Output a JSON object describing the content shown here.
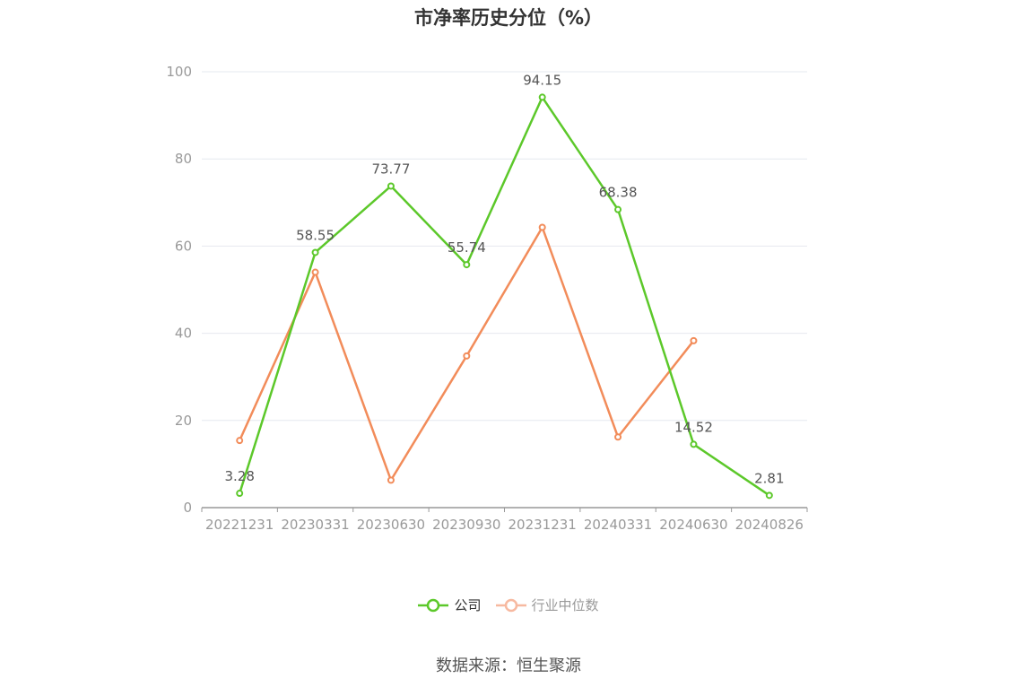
{
  "title": "市净率历史分位（%）",
  "source": "数据来源：恒生聚源",
  "colors": {
    "company": "#5cc82a",
    "industry": "#f28c5a",
    "industry_legend": "#f7b9a0",
    "grid": "#e6e8ef",
    "axis": "#999999"
  },
  "legend": {
    "company": "公司",
    "industry": "行业中位数"
  },
  "chart_data": {
    "type": "line",
    "x": [
      "20221231",
      "20230331",
      "20230630",
      "20230930",
      "20231231",
      "20240331",
      "20240630",
      "20240826"
    ],
    "ylim": [
      0,
      100
    ],
    "yticks": [
      "0",
      "20",
      "40",
      "60",
      "80",
      "100"
    ],
    "grid": true,
    "legend_position": "bottom",
    "series": [
      {
        "name": "公司",
        "values": [
          3.28,
          58.55,
          73.77,
          55.74,
          94.15,
          68.38,
          14.52,
          2.81
        ],
        "labels": [
          "3.28",
          "58.55",
          "73.77",
          "55.74",
          "94.15",
          "68.38",
          "14.52",
          "2.81"
        ]
      },
      {
        "name": "行业中位数",
        "values": [
          15.4,
          54.0,
          6.3,
          34.8,
          64.3,
          16.2,
          38.3,
          null
        ]
      }
    ]
  }
}
